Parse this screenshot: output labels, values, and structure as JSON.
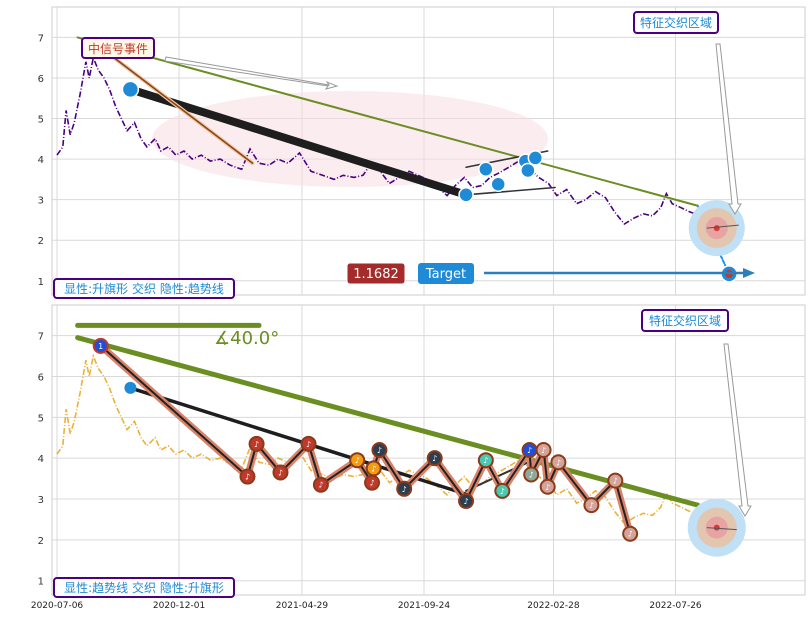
{
  "chart_data": [
    {
      "type": "line",
      "y_ticks": [
        "1",
        "2",
        "3",
        "4",
        "5",
        "6",
        "7"
      ],
      "ylim": [
        0.65,
        7.75
      ],
      "series_color": "#4b0082",
      "annotations": {
        "top_label": "中信号事件",
        "region_label": "特征交织区域",
        "bottom_label": "显性:升旗形 交织 隐性:趋势线",
        "value_badge": "1.1682",
        "target_label": "Target"
      },
      "price": [
        [
          "2020-07-06",
          4.1
        ],
        [
          "2020-07-13",
          4.3
        ],
        [
          "2020-07-17",
          5.2
        ],
        [
          "2020-07-22",
          4.6
        ],
        [
          "2020-07-27",
          4.9
        ],
        [
          "2020-08-03",
          5.6
        ],
        [
          "2020-08-10",
          6.4
        ],
        [
          "2020-08-14",
          6.0
        ],
        [
          "2020-08-19",
          6.5
        ],
        [
          "2020-08-25",
          6.2
        ],
        [
          "2020-09-01",
          6.0
        ],
        [
          "2020-09-08",
          5.7
        ],
        [
          "2020-09-15",
          5.3
        ],
        [
          "2020-09-22",
          5.0
        ],
        [
          "2020-09-29",
          4.7
        ],
        [
          "2020-10-08",
          4.9
        ],
        [
          "2020-10-16",
          4.5
        ],
        [
          "2020-10-23",
          4.3
        ],
        [
          "2020-11-02",
          4.5
        ],
        [
          "2020-11-09",
          4.2
        ],
        [
          "2020-11-18",
          4.3
        ],
        [
          "2020-11-27",
          4.1
        ],
        [
          "2020-12-07",
          4.2
        ],
        [
          "2020-12-17",
          4.0
        ],
        [
          "2020-12-28",
          4.1
        ],
        [
          "2021-01-08",
          3.95
        ],
        [
          "2021-01-20",
          4.0
        ],
        [
          "2021-02-01",
          3.85
        ],
        [
          "2021-02-15",
          3.75
        ],
        [
          "2021-02-25",
          4.25
        ],
        [
          "2021-03-08",
          3.9
        ],
        [
          "2021-03-20",
          3.85
        ],
        [
          "2021-03-31",
          4.0
        ],
        [
          "2021-04-12",
          3.9
        ],
        [
          "2021-04-26",
          4.15
        ],
        [
          "2021-05-10",
          3.7
        ],
        [
          "2021-05-24",
          3.6
        ],
        [
          "2021-06-07",
          3.5
        ],
        [
          "2021-06-18",
          3.6
        ],
        [
          "2021-07-01",
          3.55
        ],
        [
          "2021-07-12",
          3.6
        ],
        [
          "2021-07-22",
          3.9
        ],
        [
          "2021-08-02",
          3.7
        ],
        [
          "2021-08-13",
          3.4
        ],
        [
          "2021-08-25",
          3.55
        ],
        [
          "2021-09-06",
          3.7
        ],
        [
          "2021-09-17",
          3.6
        ],
        [
          "2021-09-28",
          3.5
        ],
        [
          "2021-10-11",
          3.3
        ],
        [
          "2021-10-22",
          3.1
        ],
        [
          "2021-11-01",
          3.35
        ],
        [
          "2021-11-12",
          3.55
        ],
        [
          "2021-11-22",
          3.3
        ],
        [
          "2021-12-03",
          3.35
        ],
        [
          "2021-12-13",
          3.55
        ],
        [
          "2021-12-23",
          3.65
        ],
        [
          "2022-01-05",
          3.8
        ],
        [
          "2022-01-17",
          3.95
        ],
        [
          "2022-01-28",
          3.8
        ],
        [
          "2022-02-10",
          3.55
        ],
        [
          "2022-02-22",
          3.4
        ],
        [
          "2022-03-04",
          3.1
        ],
        [
          "2022-03-16",
          3.25
        ],
        [
          "2022-03-28",
          2.9
        ],
        [
          "2022-04-08",
          3.0
        ],
        [
          "2022-04-20",
          3.2
        ],
        [
          "2022-05-02",
          3.05
        ],
        [
          "2022-05-13",
          2.7
        ],
        [
          "2022-05-25",
          2.4
        ],
        [
          "2022-06-06",
          2.55
        ],
        [
          "2022-06-17",
          2.65
        ],
        [
          "2022-06-28",
          2.6
        ],
        [
          "2022-07-08",
          2.8
        ],
        [
          "2022-07-15",
          3.15
        ],
        [
          "2022-07-22",
          2.9
        ],
        [
          "2022-08-02",
          2.8
        ],
        [
          "2022-08-12",
          2.7
        ],
        [
          "2022-08-19",
          2.65
        ]
      ],
      "trend_lines": [
        {
          "name": "top",
          "color": "#6b8e23",
          "from": [
            "2020-07-31",
            7.0
          ],
          "to": [
            "2022-08-22",
            2.85
          ]
        },
        {
          "name": "thick",
          "color": "#1e1e1e",
          "from": [
            "2020-10-03",
            5.72
          ],
          "to": [
            "2021-11-14",
            3.12
          ]
        },
        {
          "name": "thin",
          "color": "#8b4513",
          "from": [
            "2020-08-28",
            6.75
          ],
          "to": [
            "2021-02-28",
            3.9
          ]
        },
        {
          "name": "channel-lower",
          "color": "#333333",
          "from": [
            "2021-11-14",
            3.12
          ],
          "to": [
            "2022-03-02",
            3.3
          ]
        },
        {
          "name": "channel-upper",
          "color": "#333333",
          "from": [
            "2021-11-14",
            3.8
          ],
          "to": [
            "2022-02-21",
            4.2
          ]
        },
        {
          "name": "blue-target",
          "color": "#1e90ff",
          "from": [
            "2022-08-22",
            2.85
          ],
          "to": [
            "2022-09-29",
            1.17
          ]
        }
      ],
      "markers": [
        [
          "2020-10-03",
          5.72
        ],
        [
          "2021-11-14",
          3.12
        ],
        [
          "2021-12-08",
          3.75
        ],
        [
          "2021-12-23",
          3.38
        ],
        [
          "2022-01-25",
          3.95
        ],
        [
          "2022-01-28",
          3.72
        ],
        [
          "2022-02-06",
          4.03
        ]
      ],
      "target_point": [
        "2022-09-29",
        1.17
      ],
      "target_zone": [
        "2022-09-14",
        2.3
      ]
    },
    {
      "type": "line",
      "y_ticks": [
        "1",
        "2",
        "3",
        "4",
        "5",
        "6",
        "7"
      ],
      "ylim": [
        0.65,
        7.75
      ],
      "series_color": "#e8a317",
      "annotations": {
        "angle_label": "∡40.0°",
        "region_label": "特征交织区域",
        "bottom_label": "显性:趋势线 交织 隐性:升旗形"
      },
      "x_ticks": [
        "2020-07-06",
        "2020-12-01",
        "2021-04-29",
        "2021-09-24",
        "2022-02-28",
        "2022-07-26"
      ],
      "trend_lines": [
        {
          "name": "flag-top",
          "color": "#6b8e23",
          "from": [
            "2020-07-31",
            7.25
          ],
          "to": [
            "2021-03-08",
            7.25
          ]
        },
        {
          "name": "trend",
          "color": "#6b8e23",
          "from": [
            "2020-07-31",
            6.95
          ],
          "to": [
            "2022-08-22",
            2.85
          ]
        },
        {
          "name": "black",
          "color": "#1e1e1e",
          "from": [
            "2020-10-03",
            5.72
          ],
          "to": [
            "2021-11-14",
            3.12
          ]
        },
        {
          "name": "zigzag-a",
          "color": "#333333",
          "from": [
            "2021-11-14",
            3.2
          ],
          "to": [
            "2022-02-03",
            3.95
          ]
        }
      ],
      "zigzag": [
        [
          "2020-08-28",
          6.75
        ],
        [
          "2021-02-22",
          3.55
        ],
        [
          "2021-03-05",
          4.35
        ],
        [
          "2021-04-03",
          3.65
        ],
        [
          "2021-05-07",
          4.35
        ],
        [
          "2021-05-22",
          3.35
        ],
        [
          "2021-07-05",
          3.95
        ],
        [
          "2021-07-23",
          3.4
        ],
        [
          "2021-07-25",
          3.75
        ],
        [
          "2021-08-01",
          4.2
        ],
        [
          "2021-08-31",
          3.25
        ],
        [
          "2021-10-07",
          4.0
        ],
        [
          "2021-11-14",
          2.95
        ],
        [
          "2021-12-08",
          3.95
        ],
        [
          "2021-12-28",
          3.2
        ],
        [
          "2022-01-30",
          4.2
        ],
        [
          "2022-02-01",
          3.6
        ],
        [
          "2022-02-16",
          4.2
        ],
        [
          "2022-02-21",
          3.3
        ],
        [
          "2022-03-06",
          3.9
        ],
        [
          "2022-04-15",
          2.85
        ],
        [
          "2022-05-14",
          3.45
        ],
        [
          "2022-06-01",
          2.15
        ]
      ],
      "target_zone": [
        "2022-09-14",
        2.3
      ]
    }
  ]
}
